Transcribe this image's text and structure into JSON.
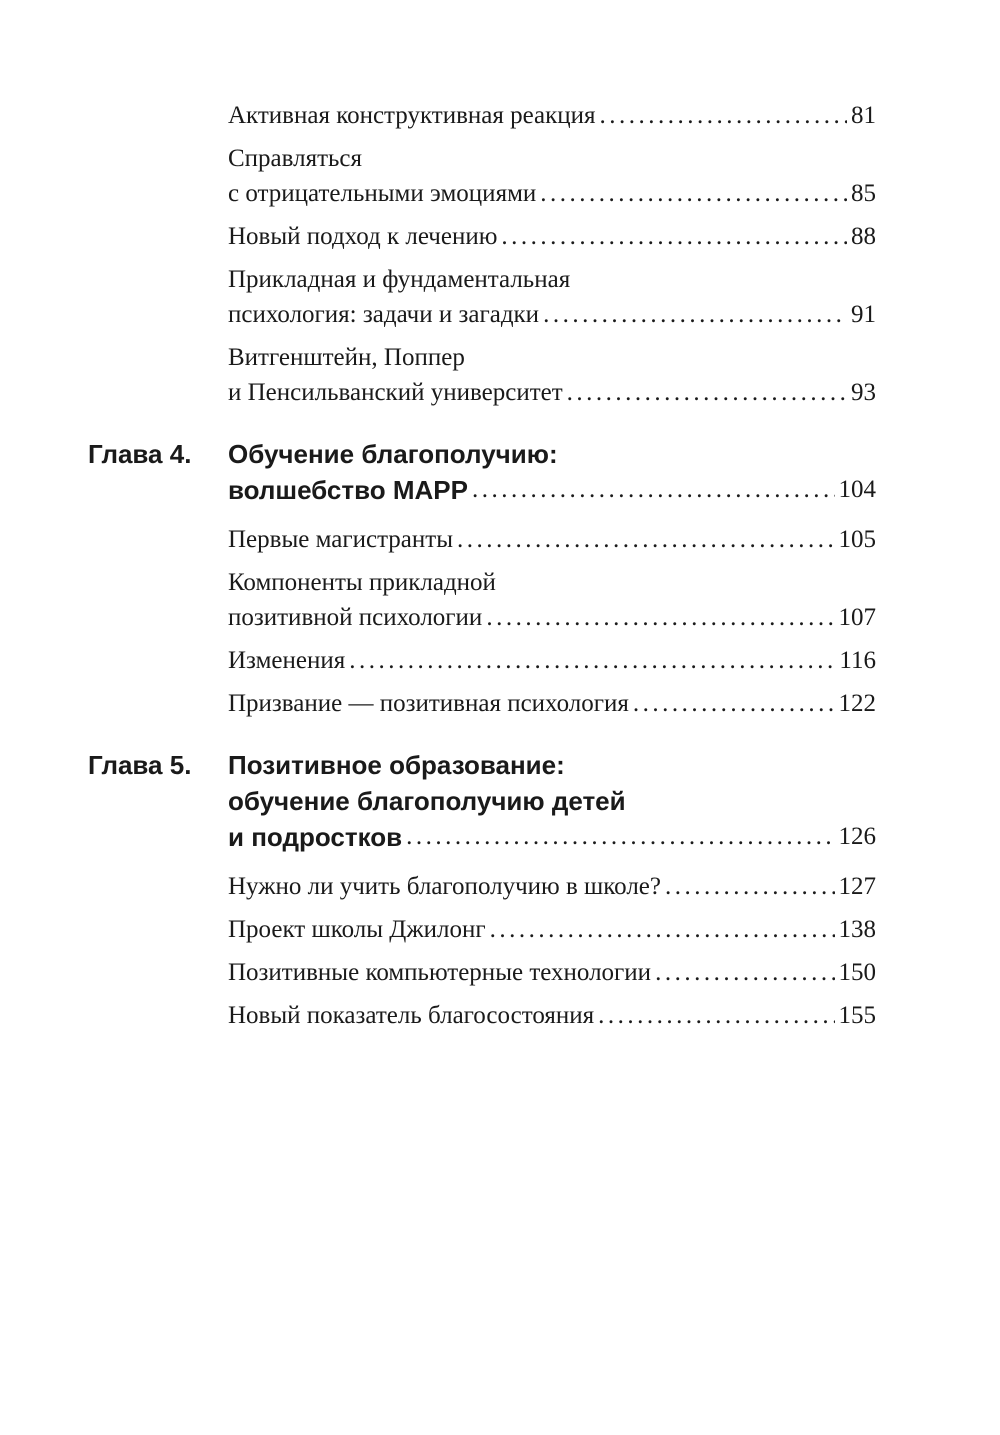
{
  "toc": [
    {
      "type": "section",
      "lines": [
        "Активная конструктивная реакция"
      ],
      "page": "81"
    },
    {
      "type": "section",
      "lines": [
        "Справляться",
        "с отрицательными эмоциями"
      ],
      "page": "85"
    },
    {
      "type": "section",
      "lines": [
        "Новый подход к лечению"
      ],
      "page": "88"
    },
    {
      "type": "section",
      "lines": [
        "Прикладная и фундаментальная",
        "психология: задачи и загадки"
      ],
      "page": "91"
    },
    {
      "type": "section",
      "lines": [
        "Витгенштейн, Поппер",
        "и Пенсильванский университет"
      ],
      "page": "93"
    },
    {
      "type": "chapter",
      "label": "Глава 4.",
      "lines": [
        "Обучение благополучию:",
        "волшебство MAPP"
      ],
      "page": "104"
    },
    {
      "type": "section",
      "lines": [
        "Первые магистранты"
      ],
      "page": "105"
    },
    {
      "type": "section",
      "lines": [
        "Компоненты прикладной",
        "позитивной психологии"
      ],
      "page": "107"
    },
    {
      "type": "section",
      "lines": [
        "Изменения"
      ],
      "page": "116"
    },
    {
      "type": "section",
      "lines": [
        "Призвание — позитивная психология"
      ],
      "page": "122"
    },
    {
      "type": "chapter",
      "label": "Глава 5.",
      "lines": [
        "Позитивное образование:",
        "обучение благополучию детей",
        "и подростков"
      ],
      "page": "126"
    },
    {
      "type": "section",
      "lines": [
        "Нужно ли учить благополучию в школе?"
      ],
      "page": "127"
    },
    {
      "type": "section",
      "lines": [
        "Проект школы Джилонг"
      ],
      "page": "138"
    },
    {
      "type": "section",
      "lines": [
        "Позитивные компьютерные технологии"
      ],
      "page": "150"
    },
    {
      "type": "section",
      "lines": [
        "Новый показатель благосостояния"
      ],
      "page": "155"
    }
  ]
}
